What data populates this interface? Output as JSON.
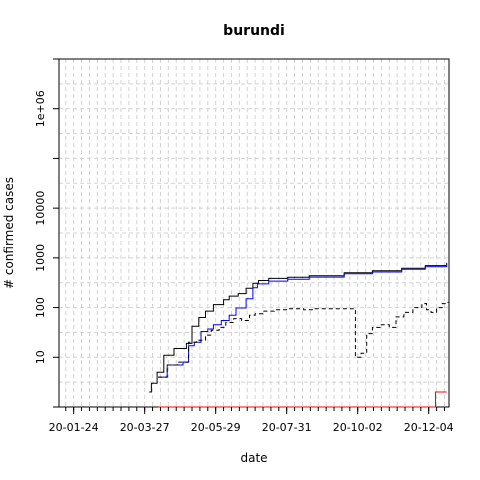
{
  "chart_data": {
    "type": "line",
    "title": "burundi",
    "xlabel": "date",
    "ylabel": "# confirmed cases",
    "y_scale": "log",
    "grid": true,
    "x_range": [
      "2020-01-11",
      "2020-12-22"
    ],
    "ylim": [
      1,
      10000000
    ],
    "x_ticks": [
      {
        "date": "2020-01-24",
        "label": "20-01-24"
      },
      {
        "date": "2020-03-27",
        "label": "20-03-27"
      },
      {
        "date": "2020-05-29",
        "label": "20-05-29"
      },
      {
        "date": "2020-07-31",
        "label": "20-07-31"
      },
      {
        "date": "2020-10-02",
        "label": "20-10-02"
      },
      {
        "date": "2020-12-04",
        "label": "20-12-04"
      }
    ],
    "y_ticks": [
      {
        "value": 10,
        "label": "10"
      },
      {
        "value": 100,
        "label": "100"
      },
      {
        "value": 1000,
        "label": "1000"
      },
      {
        "value": 10000,
        "label": "10000"
      },
      {
        "value": 1000000,
        "label": "1e+06"
      }
    ],
    "series": [
      {
        "color": "#000000",
        "style": "solid",
        "step": true,
        "points": [
          [
            "2020-03-31",
            2
          ],
          [
            "2020-04-02",
            3
          ],
          [
            "2020-04-07",
            5
          ],
          [
            "2020-04-13",
            11
          ],
          [
            "2020-04-22",
            15
          ],
          [
            "2020-05-03",
            19
          ],
          [
            "2020-05-08",
            42
          ],
          [
            "2020-05-14",
            63
          ],
          [
            "2020-05-20",
            85
          ],
          [
            "2020-05-27",
            115
          ],
          [
            "2020-06-05",
            144
          ],
          [
            "2020-06-10",
            170
          ],
          [
            "2020-06-18",
            191
          ],
          [
            "2020-06-25",
            245
          ],
          [
            "2020-07-01",
            309
          ],
          [
            "2020-07-06",
            350
          ],
          [
            "2020-07-15",
            387
          ],
          [
            "2020-08-01",
            408
          ],
          [
            "2020-08-20",
            435
          ],
          [
            "2020-09-20",
            500
          ],
          [
            "2020-10-15",
            550
          ],
          [
            "2020-11-10",
            620
          ],
          [
            "2020-12-01",
            700
          ],
          [
            "2020-12-20",
            800
          ]
        ]
      },
      {
        "color": "#0000ff",
        "style": "solid",
        "step": true,
        "points": [
          [
            "2020-04-08",
            4
          ],
          [
            "2020-04-16",
            7
          ],
          [
            "2020-04-30",
            8
          ],
          [
            "2020-05-05",
            17
          ],
          [
            "2020-05-10",
            20
          ],
          [
            "2020-05-16",
            33
          ],
          [
            "2020-05-22",
            37
          ],
          [
            "2020-05-27",
            45
          ],
          [
            "2020-06-03",
            55
          ],
          [
            "2020-06-10",
            70
          ],
          [
            "2020-06-16",
            98
          ],
          [
            "2020-06-25",
            150
          ],
          [
            "2020-07-01",
            250
          ],
          [
            "2020-07-05",
            300
          ],
          [
            "2020-07-15",
            340
          ],
          [
            "2020-08-01",
            370
          ],
          [
            "2020-08-20",
            410
          ],
          [
            "2020-09-20",
            480
          ],
          [
            "2020-10-15",
            520
          ],
          [
            "2020-11-10",
            590
          ],
          [
            "2020-12-01",
            660
          ],
          [
            "2020-12-20",
            720
          ]
        ]
      },
      {
        "color": "#000000",
        "style": "dashed",
        "step": true,
        "points": [
          [
            "2020-04-08",
            4
          ],
          [
            "2020-04-16",
            7
          ],
          [
            "2020-04-25",
            8
          ],
          [
            "2020-05-05",
            20
          ],
          [
            "2020-05-12",
            22
          ],
          [
            "2020-05-20",
            28
          ],
          [
            "2020-05-25",
            35
          ],
          [
            "2020-06-01",
            40
          ],
          [
            "2020-06-07",
            50
          ],
          [
            "2020-06-14",
            60
          ],
          [
            "2020-06-21",
            55
          ],
          [
            "2020-06-28",
            70
          ],
          [
            "2020-07-03",
            75
          ],
          [
            "2020-07-10",
            85
          ],
          [
            "2020-07-20",
            90
          ],
          [
            "2020-08-01",
            95
          ],
          [
            "2020-08-15",
            90
          ],
          [
            "2020-08-25",
            95
          ],
          [
            "2020-09-01",
            95
          ],
          [
            "2020-09-28",
            90
          ],
          [
            "2020-09-30",
            10
          ],
          [
            "2020-10-05",
            12
          ],
          [
            "2020-10-10",
            30
          ],
          [
            "2020-10-15",
            40
          ],
          [
            "2020-10-22",
            45
          ],
          [
            "2020-10-30",
            40
          ],
          [
            "2020-11-05",
            65
          ],
          [
            "2020-11-12",
            80
          ],
          [
            "2020-11-20",
            100
          ],
          [
            "2020-11-28",
            120
          ],
          [
            "2020-12-02",
            90
          ],
          [
            "2020-12-06",
            80
          ],
          [
            "2020-12-11",
            100
          ],
          [
            "2020-12-16",
            120
          ],
          [
            "2020-12-21",
            130
          ]
        ]
      },
      {
        "color": "#ff0000",
        "style": "solid",
        "step": true,
        "points": [
          [
            "2020-04-08",
            1
          ],
          [
            "2020-12-08",
            1
          ],
          [
            "2020-12-10",
            2
          ],
          [
            "2020-12-20",
            2
          ]
        ]
      }
    ]
  }
}
